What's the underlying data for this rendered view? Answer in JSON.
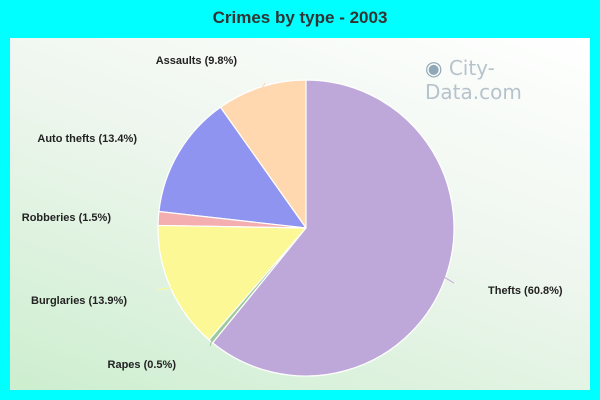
{
  "chart_data": {
    "type": "pie",
    "title": "Crimes by type - 2003",
    "slices": [
      {
        "label": "Assaults (9.8%)",
        "name": "Assaults",
        "value": 9.8,
        "color": "#ffd8b0"
      },
      {
        "label": "Auto thefts (13.4%)",
        "name": "Auto thefts",
        "value": 13.4,
        "color": "#8f94f0"
      },
      {
        "label": "Robberies (1.5%)",
        "name": "Robberies",
        "value": 1.5,
        "color": "#f4aeb0"
      },
      {
        "label": "Burglaries (13.9%)",
        "name": "Burglaries",
        "value": 13.9,
        "color": "#fcf896"
      },
      {
        "label": "Rapes (0.5%)",
        "name": "Rapes",
        "value": 0.5,
        "color": "#9ec99a"
      },
      {
        "label": "Thefts (60.8%)",
        "name": "Thefts",
        "value": 60.8,
        "color": "#bea8d9"
      }
    ],
    "start": "top",
    "direction": "counterclockwise"
  },
  "watermark": {
    "text": "City-Data.com"
  }
}
